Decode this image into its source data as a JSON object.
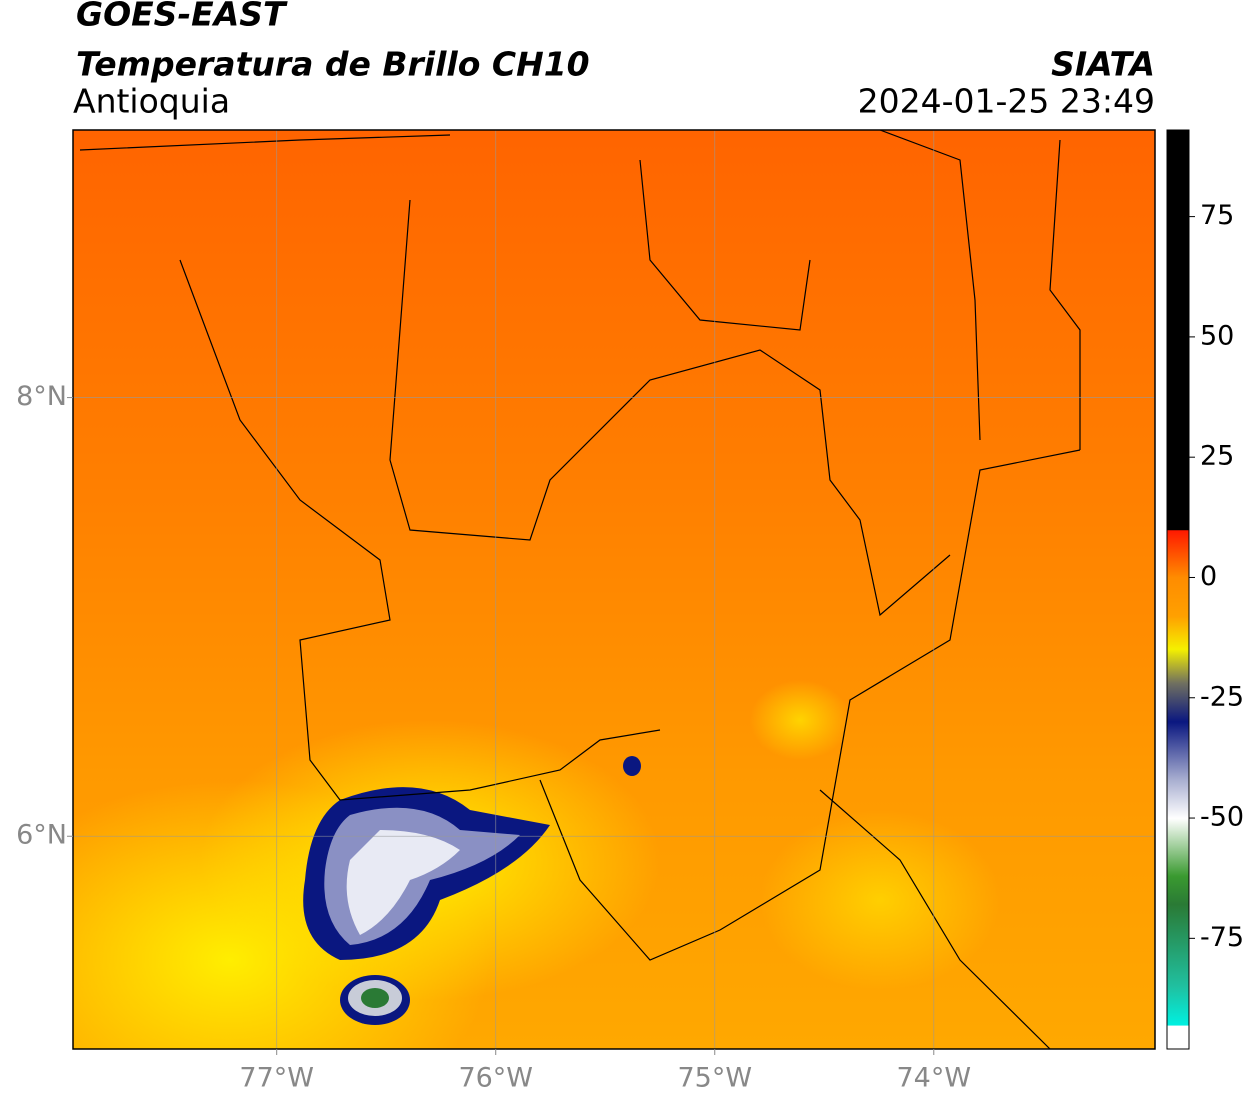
{
  "map": {
    "title": "GOES-EAST",
    "subtitle": "Temperatura de Brillo CH10",
    "region": "Antioquia",
    "source": "SIATA",
    "timestamp": "2024-01-25 23:49",
    "xlim": [
      -77.93,
      -72.99
    ],
    "ylim": [
      5.03,
      9.22
    ],
    "xticks": [
      {
        "value": -77,
        "label": "77°W"
      },
      {
        "value": -76,
        "label": "76°W"
      },
      {
        "value": -75,
        "label": "75°W"
      },
      {
        "value": -74,
        "label": "74°W"
      }
    ],
    "yticks": [
      {
        "value": 6,
        "label": "6°N"
      },
      {
        "value": 8,
        "label": "8°N"
      }
    ],
    "grid": true,
    "colorbar": {
      "lim": [
        -98,
        93
      ],
      "ticks": [
        -75,
        -50,
        -25,
        0,
        25,
        50,
        75
      ]
    }
  }
}
